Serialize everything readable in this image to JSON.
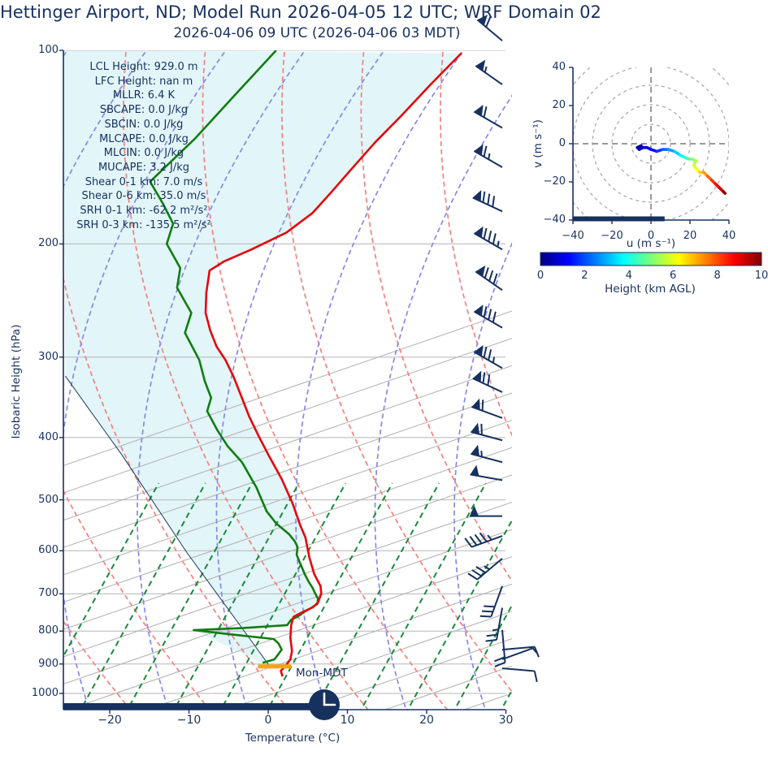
{
  "title": "Hettinger Airport, ND; Model Run 2026-04-05 12 UTC; WRF Domain 02",
  "subtitle": "2026-04-06 09 UTC  (2026-04-06 03 MDT)",
  "colors": {
    "navy": "#17315f",
    "temperature_line": "#e80509",
    "dewpoint_line": "#107d10",
    "parcel_line": "#1b3a5c",
    "fill_region": "#e2f5f8",
    "lcl_marker": "#ffa500",
    "isotherm_gray": "#b5b5b5",
    "dry_adiabat": "#f2827f",
    "moist_adiabat": "#8888e8",
    "mixing_line": "#1a8a3c"
  },
  "skewt": {
    "xlabel": "Temperature (°C)",
    "ylabel": "Isobaric Height (hPa)",
    "x_ticks": [
      {
        "v": -20,
        "label": "−20"
      },
      {
        "v": -10,
        "label": "−10"
      },
      {
        "v": 0,
        "label": "0"
      },
      {
        "v": 10,
        "label": "10"
      },
      {
        "v": 20,
        "label": "20"
      },
      {
        "v": 30,
        "label": "30"
      }
    ],
    "y_ticks": [
      {
        "v": 100,
        "label": "100"
      },
      {
        "v": 200,
        "label": "200"
      },
      {
        "v": 300,
        "label": "300"
      },
      {
        "v": 400,
        "label": "400"
      },
      {
        "v": 500,
        "label": "500"
      },
      {
        "v": 600,
        "label": "600"
      },
      {
        "v": 700,
        "label": "700"
      },
      {
        "v": 800,
        "label": "800"
      },
      {
        "v": 900,
        "label": "900"
      },
      {
        "v": 1000,
        "label": "1000"
      }
    ],
    "surface_label": "Mon-MDT",
    "stats_lines": [
      "LCL Height: 929.0 m",
      "LFC Height: nan m",
      "MLLR: 6.4 K",
      "SBCAPE: 0.0 J/kg",
      "SBCIN: 0.0 J/kg",
      "MLCAPE: 0.0 J/kg",
      "MLCIN: 0.0 J/kg",
      "MUCAPE: 3.2 J/kg",
      "Shear 0-1 km: 7.0 m/s",
      "Shear 0-6 km: 35.0 m/s",
      "SRH 0-1 km: -62.2 m²/s²",
      "SRH 0-3 km: -135.5 m²/s²"
    ]
  },
  "hodograph": {
    "xlabel": "u (m s⁻¹)",
    "ylabel": "v (m s⁻¹)",
    "u_ticks": [
      {
        "v": -40,
        "label": "−40"
      },
      {
        "v": -20,
        "label": "−20"
      },
      {
        "v": 0,
        "label": "0"
      },
      {
        "v": 20,
        "label": "20"
      },
      {
        "v": 40,
        "label": "40"
      }
    ],
    "v_ticks": [
      {
        "v": 40,
        "label": "40"
      },
      {
        "v": 20,
        "label": "20"
      },
      {
        "v": 0,
        "label": "0"
      },
      {
        "v": -20,
        "label": "−20"
      },
      {
        "v": -40,
        "label": "−40"
      }
    ],
    "ring_radii_ms": [
      10,
      20,
      30,
      40,
      50
    ]
  },
  "colorbar": {
    "label": "Height (km AGL)",
    "ticks": [
      0,
      2,
      4,
      6,
      8,
      10
    ],
    "min": 0,
    "max": 10
  },
  "chart_data": {
    "type": "skewt-sounding",
    "pressure_range_hPa": [
      100,
      1060
    ],
    "temp_axis_range_C": [
      -25,
      30
    ],
    "temperature_curve_p_t": [
      [
        101,
        24.4
      ],
      [
        113,
        20.5
      ],
      [
        126,
        16.9
      ],
      [
        139,
        13.5
      ],
      [
        153,
        10.5
      ],
      [
        166,
        8.0
      ],
      [
        179,
        5.6
      ],
      [
        192,
        2.3
      ],
      [
        204,
        -2.1
      ],
      [
        213,
        -5.6
      ],
      [
        220,
        -7.4
      ],
      [
        238,
        -7.8
      ],
      [
        256,
        -7.9
      ],
      [
        273,
        -7.3
      ],
      [
        289,
        -6.5
      ],
      [
        303,
        -5.4
      ],
      [
        321,
        -4.4
      ],
      [
        345,
        -3.4
      ],
      [
        371,
        -2.4
      ],
      [
        398,
        -1.2
      ],
      [
        425,
        0.0
      ],
      [
        464,
        1.7
      ],
      [
        507,
        3.1
      ],
      [
        550,
        4.1
      ],
      [
        572,
        4.7
      ],
      [
        615,
        5.2
      ],
      [
        652,
        5.8
      ],
      [
        681,
        6.6
      ],
      [
        699,
        6.7
      ],
      [
        722,
        6.3
      ],
      [
        735,
        5.6
      ],
      [
        750,
        4.1
      ],
      [
        760,
        3.2
      ],
      [
        783,
        2.9
      ],
      [
        819,
        2.8
      ],
      [
        859,
        3.0
      ],
      [
        885,
        2.8
      ],
      [
        906,
        2.2
      ],
      [
        922,
        1.6
      ],
      [
        941,
        1.8
      ]
    ],
    "dewpoint_curve_p_t": [
      [
        100,
        1.0
      ],
      [
        117,
        -4.1
      ],
      [
        137,
        -9.2
      ],
      [
        160,
        -14.9
      ],
      [
        173,
        -13.3
      ],
      [
        186,
        -12.0
      ],
      [
        200,
        -12.8
      ],
      [
        218,
        -11.1
      ],
      [
        234,
        -11.5
      ],
      [
        256,
        -9.7
      ],
      [
        275,
        -10.5
      ],
      [
        303,
        -8.7
      ],
      [
        327,
        -8.0
      ],
      [
        347,
        -7.2
      ],
      [
        364,
        -7.7
      ],
      [
        390,
        -6.4
      ],
      [
        413,
        -5.1
      ],
      [
        437,
        -3.3
      ],
      [
        478,
        -1.5
      ],
      [
        521,
        -0.2
      ],
      [
        544,
        1.0
      ],
      [
        565,
        2.6
      ],
      [
        581,
        3.4
      ],
      [
        592,
        3.7
      ],
      [
        609,
        3.6
      ],
      [
        630,
        4.1
      ],
      [
        652,
        4.6
      ],
      [
        670,
        5.1
      ],
      [
        685,
        5.6
      ],
      [
        698,
        5.9
      ],
      [
        713,
        6.3
      ],
      [
        726,
        6.2
      ],
      [
        737,
        5.4
      ],
      [
        745,
        4.7
      ],
      [
        760,
        3.7
      ],
      [
        768,
        2.9
      ],
      [
        783,
        2.4
      ],
      [
        791,
        -3.1
      ],
      [
        797,
        -9.4
      ],
      [
        811,
        -4.1
      ],
      [
        823,
        0.7
      ],
      [
        836,
        1.3
      ],
      [
        855,
        1.7
      ],
      [
        885,
        0.8
      ],
      [
        896,
        -0.7
      ]
    ],
    "parcel_trace_p_t": [
      [
        321,
        -25.6
      ],
      [
        425,
        -18.5
      ],
      [
        603,
        -10.3
      ],
      [
        823,
        -2.3
      ],
      [
        911,
        0.3
      ]
    ],
    "lcl_marker": {
      "p": 908,
      "t_from": -1.3,
      "t_to": 2.9
    },
    "surface_bar": {
      "p_bottom_px": true,
      "t_from": -25.8,
      "t_to": 5.7
    },
    "wind_barbs": [
      {
        "p": 96.6,
        "dir": 310,
        "flags": 1,
        "full": 1,
        "half": 0
      },
      {
        "p": 113,
        "dir": 305,
        "flags": 1,
        "full": 0,
        "half": 1
      },
      {
        "p": 132,
        "dir": 300,
        "flags": 1,
        "full": 1,
        "half": 0
      },
      {
        "p": 152,
        "dir": 300,
        "flags": 1,
        "full": 1,
        "half": 1
      },
      {
        "p": 178,
        "dir": 295,
        "flags": 1,
        "full": 3,
        "half": 0
      },
      {
        "p": 204,
        "dir": 300,
        "flags": 1,
        "full": 3,
        "half": 1
      },
      {
        "p": 236,
        "dir": 305,
        "flags": 1,
        "full": 3,
        "half": 0
      },
      {
        "p": 270,
        "dir": 300,
        "flags": 1,
        "full": 3,
        "half": 0
      },
      {
        "p": 312,
        "dir": 300,
        "flags": 1,
        "full": 2,
        "half": 1
      },
      {
        "p": 340,
        "dir": 295,
        "flags": 1,
        "full": 2,
        "half": 0
      },
      {
        "p": 373,
        "dir": 290,
        "flags": 1,
        "full": 1,
        "half": 0
      },
      {
        "p": 404,
        "dir": 285,
        "flags": 1,
        "full": 1,
        "half": 0
      },
      {
        "p": 437,
        "dir": 285,
        "flags": 1,
        "full": 0,
        "half": 1
      },
      {
        "p": 466,
        "dir": 280,
        "flags": 1,
        "full": 0,
        "half": 0
      },
      {
        "p": 530,
        "dir": 270,
        "flags": 1,
        "full": 0,
        "half": 0
      },
      {
        "p": 569,
        "dir": 250,
        "flags": 0,
        "full": 4,
        "half": 1
      },
      {
        "p": 617,
        "dir": 230,
        "flags": 0,
        "full": 3,
        "half": 1
      },
      {
        "p": 681,
        "dir": 200,
        "flags": 0,
        "full": 3,
        "half": 0
      },
      {
        "p": 736,
        "dir": 190,
        "flags": 0,
        "full": 2,
        "half": 1
      },
      {
        "p": 797,
        "dir": 175,
        "flags": 0,
        "full": 2,
        "half": 0
      },
      {
        "p": 855,
        "dir": 85,
        "flags": 0,
        "full": 1,
        "half": 0
      },
      {
        "p": 885,
        "dir": 70,
        "flags": 0,
        "full": 0,
        "half": 1
      },
      {
        "p": 914,
        "dir": 95,
        "flags": 0,
        "full": 1,
        "half": 0
      }
    ],
    "hodograph_trace_u_v_km": [
      [
        -5,
        -1,
        0
      ],
      [
        -7,
        -2,
        0.3
      ],
      [
        -6,
        -3,
        0.5
      ],
      [
        -4,
        -2,
        0.7
      ],
      [
        -2,
        -2,
        0.9
      ],
      [
        0,
        -3,
        1.2
      ],
      [
        3,
        -4,
        1.6
      ],
      [
        6,
        -3,
        2
      ],
      [
        9,
        -3,
        2.5
      ],
      [
        12,
        -4,
        3
      ],
      [
        15,
        -6,
        3.5
      ],
      [
        17,
        -7,
        4
      ],
      [
        19,
        -8,
        4.5
      ],
      [
        21,
        -8,
        5
      ],
      [
        23,
        -9,
        5.3
      ],
      [
        22,
        -11,
        5.6
      ],
      [
        23,
        -13,
        6
      ],
      [
        25,
        -15,
        6.5
      ],
      [
        27,
        -15,
        7
      ],
      [
        29,
        -17,
        7.5
      ],
      [
        31,
        -19,
        8
      ],
      [
        33,
        -21,
        8.5
      ],
      [
        35,
        -23,
        9
      ],
      [
        37,
        -25,
        9.5
      ],
      [
        38,
        -26,
        10
      ]
    ],
    "hodograph_bar_u_range": [
      -40,
      7
    ],
    "clock_time": "3:00"
  }
}
